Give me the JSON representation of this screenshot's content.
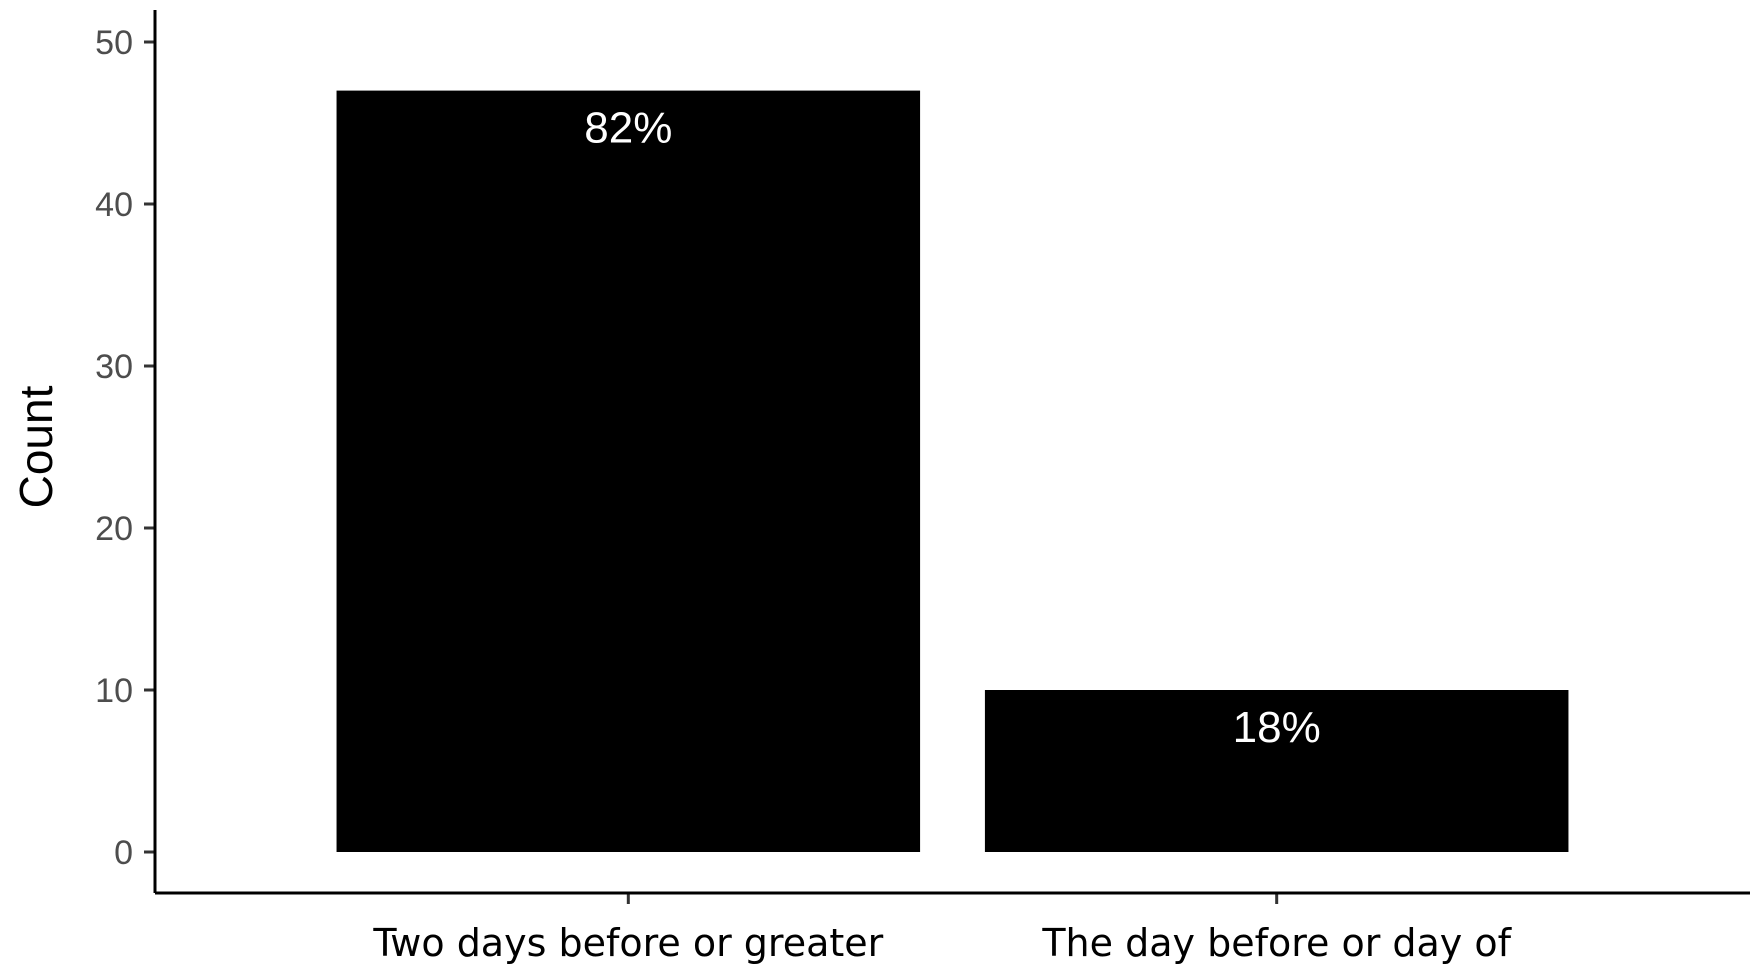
{
  "chart_data": {
    "type": "bar",
    "categories": [
      "Two days before or greater",
      "The day before or day of"
    ],
    "values": [
      47,
      10
    ],
    "data_labels": [
      "82%",
      "18%"
    ],
    "ylabel": "Count",
    "ylim": [
      0,
      52
    ],
    "yticks": [
      0,
      10,
      20,
      30,
      40,
      50
    ],
    "grid": false,
    "bar_color": "#000000",
    "data_label_color": "#ffffff"
  }
}
